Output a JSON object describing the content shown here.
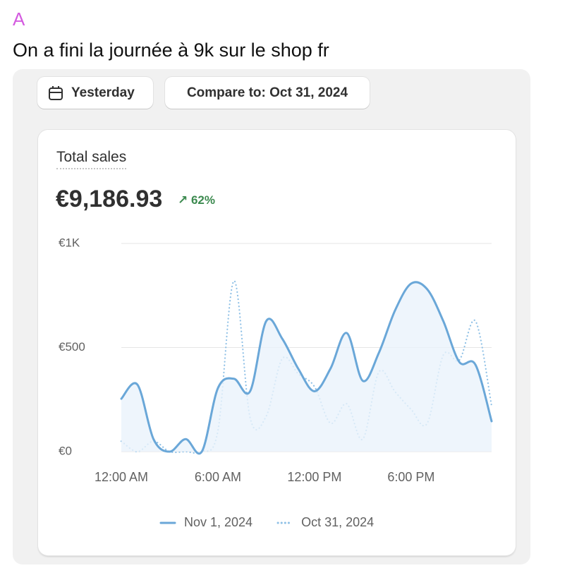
{
  "post": {
    "author": "A",
    "text": "On a fini la journée à 9k sur le shop fr"
  },
  "toolbar": {
    "date_button": "Yesterday",
    "compare_button": "Compare to: Oct 31, 2024"
  },
  "card": {
    "title": "Total sales",
    "total": "€9,186.93",
    "change": "62%"
  },
  "chart_data": {
    "type": "line",
    "categories": [
      "12:00 AM",
      null,
      null,
      null,
      null,
      null,
      "6:00 AM",
      null,
      null,
      null,
      null,
      null,
      "12:00 PM",
      null,
      null,
      null,
      null,
      null,
      "6:00 PM",
      null,
      null,
      null,
      null,
      null
    ],
    "series": [
      {
        "name": "Nov 1, 2024",
        "color": "#6aa7d8",
        "style": "solid",
        "values": [
          254,
          322,
          60,
          0,
          60,
          0,
          305,
          350,
          290,
          627,
          542,
          397,
          290,
          400,
          570,
          340,
          475,
          678,
          807,
          780,
          627,
          430,
          417,
          146
        ]
      },
      {
        "name": "Oct 31, 2024",
        "color": "#8ec0e6",
        "style": "dotted",
        "values": [
          50,
          0,
          50,
          0,
          0,
          0,
          100,
          820,
          163,
          170,
          447,
          373,
          312,
          136,
          230,
          60,
          383,
          288,
          203,
          136,
          464,
          440,
          627,
          220
        ]
      }
    ],
    "ylim": [
      0,
      1000
    ],
    "yticks": [
      {
        "value": 0,
        "label": "€0"
      },
      {
        "value": 500,
        "label": "€500"
      },
      {
        "value": 1000,
        "label": "€1K"
      }
    ],
    "grid": true
  }
}
